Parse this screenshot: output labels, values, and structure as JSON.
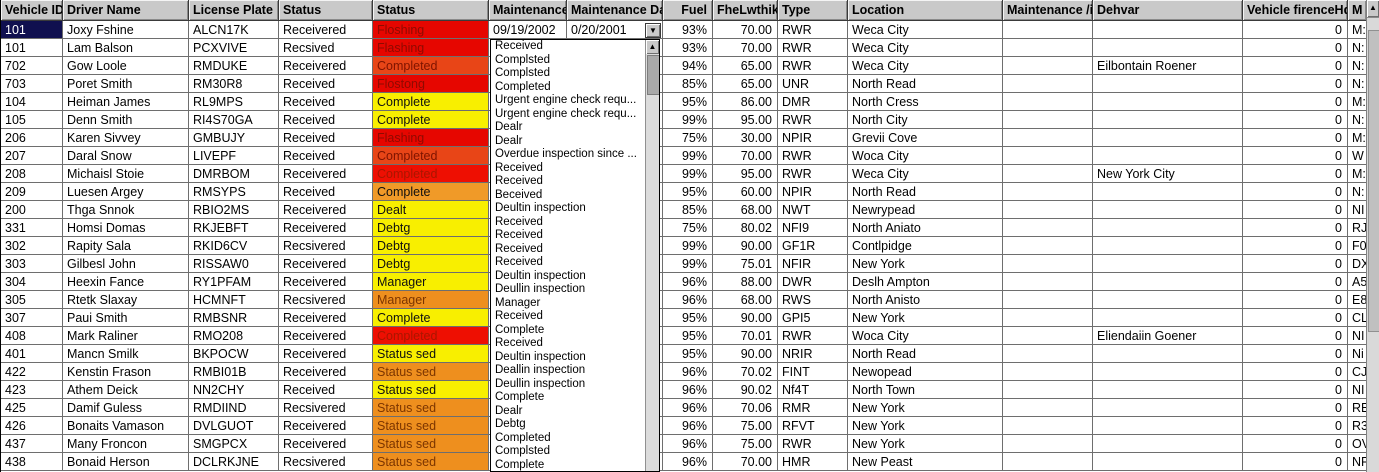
{
  "grid": {
    "columns": [
      {
        "id": "vehicle_id",
        "label": "Vehicle ID"
      },
      {
        "id": "driver_name",
        "label": "Driver Name"
      },
      {
        "id": "license_plate",
        "label": "License Plate"
      },
      {
        "id": "status",
        "label": "Status"
      },
      {
        "id": "status2",
        "label": "Status"
      },
      {
        "id": "maintenance",
        "label": "Maintenance"
      },
      {
        "id": "maintenance_date",
        "label": "Maintenance Dat"
      },
      {
        "id": "fuel",
        "label": "Fuel"
      },
      {
        "id": "fuel_level",
        "label": "FheLwthiko"
      },
      {
        "id": "type",
        "label": "Type"
      },
      {
        "id": "location",
        "label": "Location"
      },
      {
        "id": "maintenance_is",
        "label": "Maintenance /is"
      },
      {
        "id": "dehvar",
        "label": "Dehvar"
      },
      {
        "id": "vehicle_firence",
        "label": "Vehicle firenceHdlt"
      },
      {
        "id": "m",
        "label": "M"
      }
    ],
    "rows": [
      {
        "vehicle_id": "101",
        "driver_name": "Joxy Fshine",
        "license_plate": "ALCN17K",
        "status": "Receivered",
        "status2": "Floshing",
        "status2_color": "red",
        "maintenance": "09/19/2002",
        "maintenance_date": "0/20/2001",
        "fuel": "93%",
        "fuel_level": "70.00",
        "type": "RWR",
        "location": "Weca City",
        "maintenance_is": "",
        "dehvar": "",
        "vehicle_firence": "0",
        "m": "M:"
      },
      {
        "vehicle_id": "101",
        "driver_name": "Lam Balson",
        "license_plate": "PCXVIVE",
        "status": "Recsived",
        "status2": "Flashing",
        "status2_color": "red",
        "maintenance": "",
        "maintenance_date": "",
        "fuel": "93%",
        "fuel_level": "70.00",
        "type": "RWR",
        "location": "Weca City",
        "maintenance_is": "",
        "dehvar": "",
        "vehicle_firence": "0",
        "m": "N:"
      },
      {
        "vehicle_id": "702",
        "driver_name": "Gow Loole",
        "license_plate": "RMDUKE",
        "status": "Receivered",
        "status2": "Completed",
        "status2_color": "redorange",
        "maintenance": "",
        "maintenance_date": "",
        "fuel": "94%",
        "fuel_level": "65.00",
        "type": "RWR",
        "location": "Weca City",
        "maintenance_is": "",
        "dehvar": "Eilbontain Roener",
        "vehicle_firence": "0",
        "m": "N:"
      },
      {
        "vehicle_id": "703",
        "driver_name": "Poret Smith",
        "license_plate": "RM30R8",
        "status": "Received",
        "status2": "Flostong",
        "status2_color": "red",
        "maintenance": "",
        "maintenance_date": "",
        "fuel": "85%",
        "fuel_level": "65.00",
        "type": "UNR",
        "location": "North Read",
        "maintenance_is": "",
        "dehvar": "",
        "vehicle_firence": "0",
        "m": "N:"
      },
      {
        "vehicle_id": "104",
        "driver_name": "Heiman James",
        "license_plate": "RL9MPS",
        "status": "Received",
        "status2": "Complete",
        "status2_color": "yellow",
        "maintenance": "",
        "maintenance_date": "",
        "fuel": "95%",
        "fuel_level": "86.00",
        "type": "DMR",
        "location": "North Cress",
        "maintenance_is": "",
        "dehvar": "",
        "vehicle_firence": "0",
        "m": "M:"
      },
      {
        "vehicle_id": "105",
        "driver_name": "Denn Smith",
        "license_plate": "RI4S70GA",
        "status": "Received",
        "status2": "Complete",
        "status2_color": "yellow",
        "maintenance": "",
        "maintenance_date": "",
        "fuel": "99%",
        "fuel_level": "95.00",
        "type": "RWR",
        "location": "North City",
        "maintenance_is": "",
        "dehvar": "",
        "vehicle_firence": "0",
        "m": "N:"
      },
      {
        "vehicle_id": "206",
        "driver_name": "Karen Sivvey",
        "license_plate": "GMBUJY",
        "status": "Received",
        "status2": "Flashing",
        "status2_color": "red",
        "maintenance": "",
        "maintenance_date": "",
        "fuel": "75%",
        "fuel_level": "30.00",
        "type": "NPIR",
        "location": "Grevii Cove",
        "maintenance_is": "",
        "dehvar": "",
        "vehicle_firence": "0",
        "m": "M:"
      },
      {
        "vehicle_id": "207",
        "driver_name": "Daral Snow",
        "license_plate": "LIVEPF",
        "status": "Received",
        "status2": "Completed",
        "status2_color": "redorange",
        "maintenance": "",
        "maintenance_date": "",
        "fuel": "99%",
        "fuel_level": "70.00",
        "type": "RWR",
        "location": "Woca City",
        "maintenance_is": "",
        "dehvar": "",
        "vehicle_firence": "0",
        "m": "W"
      },
      {
        "vehicle_id": "208",
        "driver_name": "Michaisl Stoie",
        "license_plate": "DMRBOM",
        "status": "Receivered",
        "status2": "Completed",
        "status2_color": "red2",
        "maintenance": "",
        "maintenance_date": "",
        "fuel": "99%",
        "fuel_level": "95.00",
        "type": "RWR",
        "location": "Weca City",
        "maintenance_is": "",
        "dehvar": "New York City",
        "vehicle_firence": "0",
        "m": "M:"
      },
      {
        "vehicle_id": "209",
        "driver_name": "Luesen Argey",
        "license_plate": "RMSYPS",
        "status": "Received",
        "status2": "Complete",
        "status2_color": "orange",
        "maintenance": "",
        "maintenance_date": "",
        "fuel": "95%",
        "fuel_level": "60.00",
        "type": "NPIR",
        "location": "North Read",
        "maintenance_is": "",
        "dehvar": "",
        "vehicle_firence": "0",
        "m": "N:"
      },
      {
        "vehicle_id": "200",
        "driver_name": "Thga Snnok",
        "license_plate": "RBIO2MS",
        "status": "Receivered",
        "status2": "Dealt",
        "status2_color": "yellow",
        "maintenance": "",
        "maintenance_date": "",
        "fuel": "85%",
        "fuel_level": "68.00",
        "type": "NWT",
        "location": "Newrypead",
        "maintenance_is": "",
        "dehvar": "",
        "vehicle_firence": "0",
        "m": "NI"
      },
      {
        "vehicle_id": "331",
        "driver_name": "Homsi Domas",
        "license_plate": "RKJEBFT",
        "status": "Receivered",
        "status2": "Debtg",
        "status2_color": "yellow",
        "maintenance": "",
        "maintenance_date": "",
        "fuel": "75%",
        "fuel_level": "80.02",
        "type": "NFI9",
        "location": "North Aniato",
        "maintenance_is": "",
        "dehvar": "",
        "vehicle_firence": "0",
        "m": "RJ"
      },
      {
        "vehicle_id": "302",
        "driver_name": "Rapity Sala",
        "license_plate": "RKID6CV",
        "status": "Recsivered",
        "status2": "Debtg",
        "status2_color": "yellow",
        "maintenance": "",
        "maintenance_date": "",
        "fuel": "99%",
        "fuel_level": "90.00",
        "type": "GF1R",
        "location": "Contlpidge",
        "maintenance_is": "",
        "dehvar": "",
        "vehicle_firence": "0",
        "m": "F0"
      },
      {
        "vehicle_id": "303",
        "driver_name": "Gilbesl John",
        "license_plate": "RISSAW0",
        "status": "Receivered",
        "status2": "Debtg",
        "status2_color": "yellow",
        "maintenance": "",
        "maintenance_date": "",
        "fuel": "99%",
        "fuel_level": "75.01",
        "type": "NFIR",
        "location": "New York",
        "maintenance_is": "",
        "dehvar": "",
        "vehicle_firence": "0",
        "m": "DX"
      },
      {
        "vehicle_id": "304",
        "driver_name": "Heexin Fance",
        "license_plate": "RY1PFAM",
        "status": "Receivered",
        "status2": "Manager",
        "status2_color": "yellow",
        "maintenance": "",
        "maintenance_date": "",
        "fuel": "96%",
        "fuel_level": "88.00",
        "type": "DWR",
        "location": "Deslh Ampton",
        "maintenance_is": "",
        "dehvar": "",
        "vehicle_firence": "0",
        "m": "A5"
      },
      {
        "vehicle_id": "305",
        "driver_name": "Rtetk Slaxay",
        "license_plate": "HCMNFT",
        "status": "Recsivered",
        "status2": "Manager",
        "status2_color": "orangedark",
        "maintenance": "",
        "maintenance_date": "",
        "fuel": "96%",
        "fuel_level": "68.00",
        "type": "RWS",
        "location": "North Anisto",
        "maintenance_is": "",
        "dehvar": "",
        "vehicle_firence": "0",
        "m": "E8"
      },
      {
        "vehicle_id": "307",
        "driver_name": "Paui Smith",
        "license_plate": "RMBSNR",
        "status": "Receivered",
        "status2": "Complete",
        "status2_color": "yellow",
        "maintenance": "",
        "maintenance_date": "",
        "fuel": "95%",
        "fuel_level": "90.00",
        "type": "GPI5",
        "location": "New York",
        "maintenance_is": "",
        "dehvar": "",
        "vehicle_firence": "0",
        "m": "CL"
      },
      {
        "vehicle_id": "408",
        "driver_name": "Mark Raliner",
        "license_plate": "RMO208",
        "status": "Receivered",
        "status2": "Completed",
        "status2_color": "red2",
        "maintenance": "",
        "maintenance_date": "",
        "fuel": "95%",
        "fuel_level": "70.01",
        "type": "RWR",
        "location": "Woca City",
        "maintenance_is": "",
        "dehvar": "Eliendaiin Goener",
        "vehicle_firence": "0",
        "m": "NI"
      },
      {
        "vehicle_id": "401",
        "driver_name": "Mancn Smilk",
        "license_plate": "BKPOCW",
        "status": "Receivered",
        "status2": "Status sed",
        "status2_color": "yellow",
        "maintenance": "",
        "maintenance_date": "",
        "fuel": "95%",
        "fuel_level": "90.00",
        "type": "NRIR",
        "location": "North Read",
        "maintenance_is": "",
        "dehvar": "",
        "vehicle_firence": "0",
        "m": "Ni"
      },
      {
        "vehicle_id": "422",
        "driver_name": "Kenstin Frason",
        "license_plate": "RMBI01B",
        "status": "Receivered",
        "status2": "Status sed",
        "status2_color": "orangedark",
        "maintenance": "",
        "maintenance_date": "",
        "fuel": "96%",
        "fuel_level": "70.02",
        "type": "FINT",
        "location": "Newopead",
        "maintenance_is": "",
        "dehvar": "",
        "vehicle_firence": "0",
        "m": "CJ"
      },
      {
        "vehicle_id": "423",
        "driver_name": "Athem Deick",
        "license_plate": "NN2CHY",
        "status": "Received",
        "status2": "Status sed",
        "status2_color": "yellow",
        "maintenance": "",
        "maintenance_date": "",
        "fuel": "96%",
        "fuel_level": "90.02",
        "type": "Nf4T",
        "location": "North Town",
        "maintenance_is": "",
        "dehvar": "",
        "vehicle_firence": "0",
        "m": "NI"
      },
      {
        "vehicle_id": "425",
        "driver_name": "Damif Guless",
        "license_plate": "RMDIIND",
        "status": "Recsivered",
        "status2": "Status sed",
        "status2_color": "orangedark",
        "maintenance": "",
        "maintenance_date": "",
        "fuel": "96%",
        "fuel_level": "70.06",
        "type": "RMR",
        "location": "New York",
        "maintenance_is": "",
        "dehvar": "",
        "vehicle_firence": "0",
        "m": "RE"
      },
      {
        "vehicle_id": "426",
        "driver_name": "Bonaits Vamason",
        "license_plate": "DVLGUOT",
        "status": "Receivered",
        "status2": "Status sed",
        "status2_color": "orangedark",
        "maintenance": "",
        "maintenance_date": "",
        "fuel": "96%",
        "fuel_level": "75.00",
        "type": "RFVT",
        "location": "New York",
        "maintenance_is": "",
        "dehvar": "",
        "vehicle_firence": "0",
        "m": "R3"
      },
      {
        "vehicle_id": "437",
        "driver_name": "Many Froncon",
        "license_plate": "SMGPCX",
        "status": "Receivered",
        "status2": "Status sed",
        "status2_color": "orangedark",
        "maintenance": "",
        "maintenance_date": "",
        "fuel": "96%",
        "fuel_level": "75.00",
        "type": "RWR",
        "location": "New York",
        "maintenance_is": "",
        "dehvar": "",
        "vehicle_firence": "0",
        "m": "OV"
      },
      {
        "vehicle_id": "438",
        "driver_name": "Bonaid Herson",
        "license_plate": "DCLRKJNE",
        "status": "Recsivered",
        "status2": "Status sed",
        "status2_color": "orangedark",
        "maintenance": "",
        "maintenance_date": "",
        "fuel": "96%",
        "fuel_level": "70.00",
        "type": "HMR",
        "location": "New Peast",
        "maintenance_is": "",
        "dehvar": "",
        "vehicle_firence": "0",
        "m": "NF"
      }
    ],
    "selected": {
      "row": 0,
      "column": "vehicle_id"
    }
  },
  "palette": {
    "red": {
      "bg": "#e60600",
      "fg": "#8f0a00"
    },
    "red2": {
      "bg": "#ee0f02",
      "fg": "#aa1600"
    },
    "redorange": {
      "bg": "#e84517",
      "fg": "#7e1400"
    },
    "yellow": {
      "bg": "#f8ef00",
      "fg": "#101010"
    },
    "orange": {
      "bg": "#f09a28",
      "fg": "#101010"
    },
    "orangedark": {
      "bg": "#ee8f1e",
      "fg": "#7c3500"
    },
    "selection_bg": "#10104f",
    "selection_fg": "#ffffff",
    "header_bg": "#c9c9c9"
  },
  "combo": {
    "value": "0/20/2001",
    "dropdown_icon": "▼",
    "items": [
      "Received",
      "Complsted",
      "Complsted",
      "Completed",
      "Urgent engine check requ...",
      "Urgent engine check requ...",
      "Dealr",
      "Dealr",
      "Overdue inspection since ...",
      "Received",
      "Received",
      "Beceived",
      "Deultin inspection",
      "Received",
      "Received",
      "Received",
      "Received",
      "Deultin inspection",
      "Deullin inspection",
      "Manager",
      "Received",
      "Complete",
      "Received",
      "Deultin inspection",
      "Deallin inspection",
      "Deullin inspection",
      "Complete",
      "Dealr",
      "Debtg",
      "Completed",
      "Complsted",
      "Complete"
    ]
  },
  "scrollbar": {
    "up_icon": "▲"
  }
}
